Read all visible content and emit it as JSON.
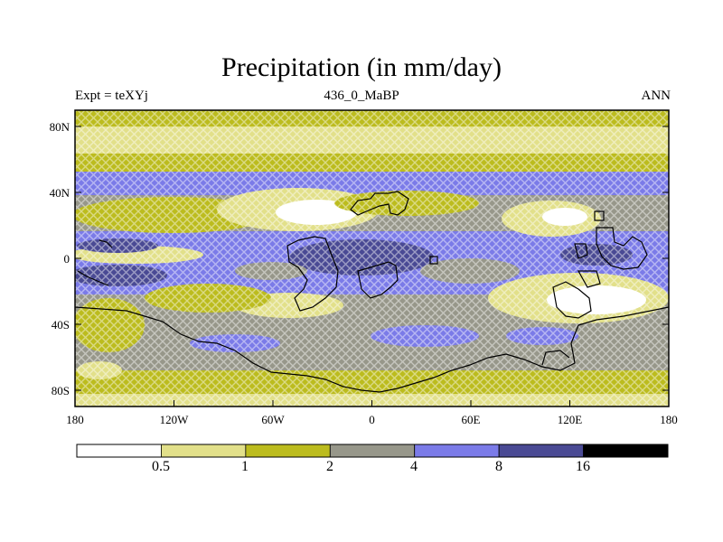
{
  "title": "Precipitation (in mm/day)",
  "left_string": "Expt = teXYj",
  "center_string": "436_0_MaBP",
  "right_string": "ANN",
  "lat_ticks": [
    "80N",
    "40N",
    "0",
    "40S",
    "80S"
  ],
  "lon_ticks": [
    "180",
    "120W",
    "60W",
    "0",
    "60E",
    "120E",
    "180"
  ],
  "colorbar": {
    "levels": [
      "0.5",
      "1",
      "2",
      "4",
      "8",
      "16"
    ],
    "colors": [
      "#ffffff",
      "#e2e08a",
      "#bcbc1e",
      "#97978a",
      "#7b7be8",
      "#4a4a94",
      "#000000"
    ]
  }
}
